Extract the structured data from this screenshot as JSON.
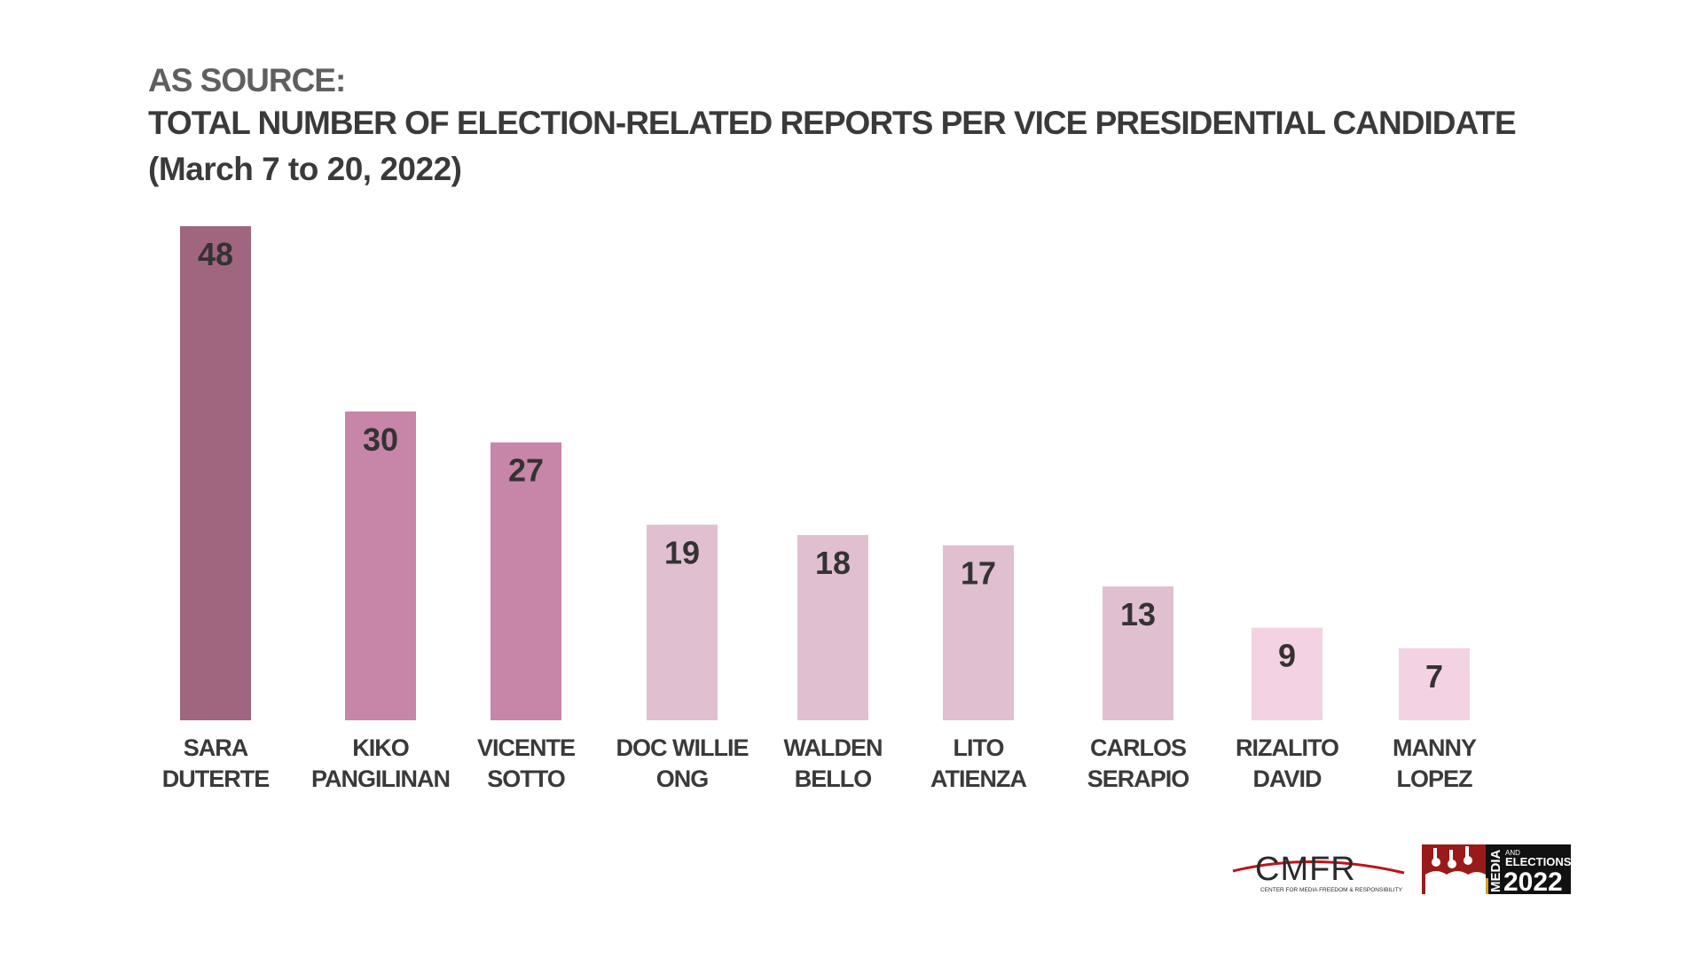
{
  "header": {
    "kicker": "AS SOURCE:",
    "title": "TOTAL NUMBER OF  ELECTION-RELATED REPORTS PER VICE PRESIDENTIAL CANDIDATE",
    "subtitle": "(March 7 to 20, 2022)"
  },
  "chart_data": {
    "type": "bar",
    "categories": [
      [
        "SARA",
        "DUTERTE"
      ],
      [
        "KIKO",
        "PANGILINAN"
      ],
      [
        "VICENTE",
        "SOTTO"
      ],
      [
        "DOC WILLIE",
        "ONG"
      ],
      [
        "WALDEN",
        "BELLO"
      ],
      [
        "LITO",
        "ATIENZA"
      ],
      [
        "CARLOS",
        "SERAPIO"
      ],
      [
        "RIZALITO",
        "DAVID"
      ],
      [
        "MANNY",
        "LOPEZ"
      ]
    ],
    "values": [
      48,
      30,
      27,
      19,
      18,
      17,
      13,
      9,
      7
    ],
    "colors": [
      "#a0657f",
      "#c785a8",
      "#c785a8",
      "#e0bfd1",
      "#e0bfd1",
      "#e0bfd1",
      "#e0bfd1",
      "#f3d3e3",
      "#f3d3e3"
    ],
    "ylim": [
      0,
      48
    ],
    "grid": false,
    "legend": "none",
    "data_labels": true
  },
  "logos": {
    "cmfr": {
      "text": "CMFR",
      "tagline": "CENTER FOR MEDIA FREEDOM & RESPONSIBILITY",
      "accent": "#c0121b"
    },
    "media_elections": {
      "vertical": "MEDIA",
      "small": "AND",
      "word": "ELECTIONS",
      "year": "2022",
      "bg": "#111111",
      "accent": "#9a1a1a"
    }
  }
}
